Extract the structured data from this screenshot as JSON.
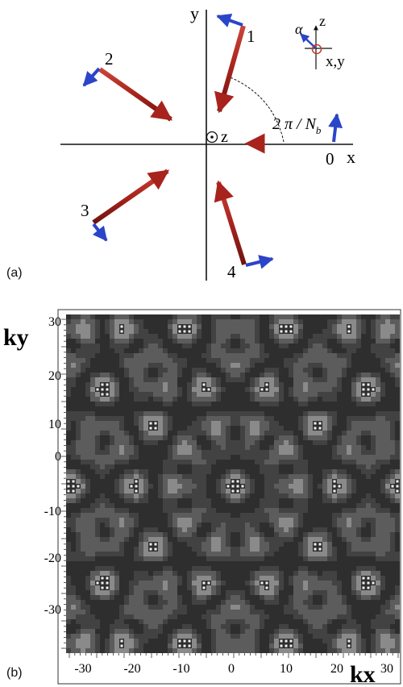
{
  "panel_a": {
    "label": "(a)",
    "axes": {
      "x": "x",
      "y": "y",
      "z_center": "z"
    },
    "beam_numbers": [
      "0",
      "1",
      "2",
      "3",
      "4"
    ],
    "angle_label": {
      "main": "2 π / N",
      "subscript": "b"
    },
    "inset": {
      "alpha": "α",
      "z": "z",
      "xy": "x,y"
    },
    "colors": {
      "beam": "#a8231c",
      "polarization": "#2a45c8",
      "inset_circle": "#c0392b"
    }
  },
  "panel_b": {
    "label": "(b)",
    "xlabel": "kx",
    "ylabel": "ky",
    "xticks": [
      "-30",
      "-20",
      "-10",
      "0",
      "10",
      "20",
      "30"
    ],
    "yticks": [
      "30",
      "20",
      "10",
      "0",
      "-10",
      "-20",
      "-30"
    ],
    "background_color": "#2e2e2e"
  }
}
